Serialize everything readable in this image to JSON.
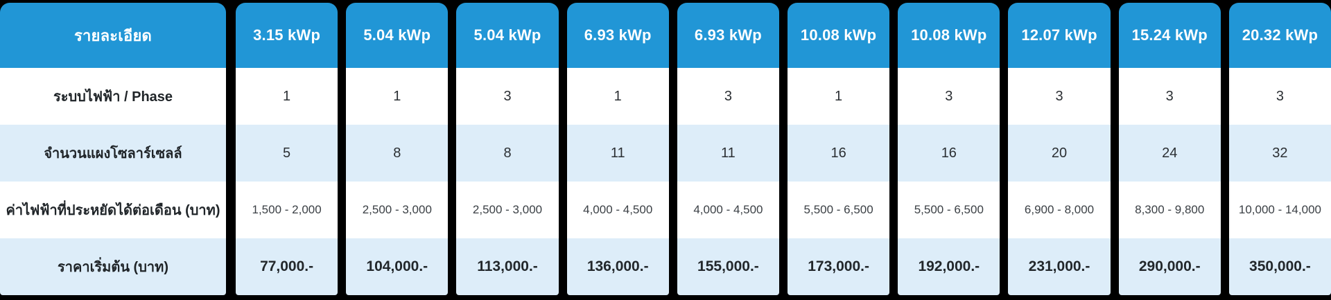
{
  "colors": {
    "header_bg": "#2196d6",
    "header_text": "#ffffff",
    "row_alt_bg": "#ddedf9",
    "row_bg": "#ffffff",
    "page_bg": "#000000",
    "body_text": "#2b2f33"
  },
  "table": {
    "header_label": "รายละเอียด",
    "columns": [
      "3.15 kWp",
      "5.04 kWp",
      "5.04 kWp",
      "6.93 kWp",
      "6.93 kWp",
      "10.08 kWp",
      "10.08 kWp",
      "12.07 kWp",
      "15.24 kWp",
      "20.32 kWp"
    ],
    "rows": [
      {
        "label": "ระบบไฟฟ้า / Phase",
        "values": [
          "1",
          "1",
          "3",
          "1",
          "3",
          "1",
          "3",
          "3",
          "3",
          "3"
        ]
      },
      {
        "label": "จำนวนแผงโซลาร์เซลล์",
        "values": [
          "5",
          "8",
          "8",
          "11",
          "11",
          "16",
          "16",
          "20",
          "24",
          "32"
        ]
      },
      {
        "label": "ค่าไฟฟ้าที่ประหยัดได้ต่อเดือน (บาท)",
        "values": [
          "1,500 - 2,000",
          "2,500 - 3,000",
          "2,500 - 3,000",
          "4,000 - 4,500",
          "4,000 - 4,500",
          "5,500 - 6,500",
          "5,500 - 6,500",
          "6,900 - 8,000",
          "8,300 - 9,800",
          "10,000 - 14,000"
        ]
      },
      {
        "label": "ราคาเริ่มต้น (บาท)",
        "values": [
          "77,000.-",
          "104,000.-",
          "113,000.-",
          "136,000.-",
          "155,000.-",
          "173,000.-",
          "192,000.-",
          "231,000.-",
          "290,000.-",
          "350,000.-"
        ]
      }
    ]
  },
  "chart_data": {
    "type": "table",
    "title": "",
    "columns": [
      "รายละเอียด",
      "3.15 kWp",
      "5.04 kWp",
      "5.04 kWp",
      "6.93 kWp",
      "6.93 kWp",
      "10.08 kWp",
      "10.08 kWp",
      "12.07 kWp",
      "15.24 kWp",
      "20.32 kWp"
    ],
    "rows": [
      [
        "ระบบไฟฟ้า / Phase",
        1,
        1,
        3,
        1,
        3,
        1,
        3,
        3,
        3,
        3
      ],
      [
        "จำนวนแผงโซลาร์เซลล์",
        5,
        8,
        8,
        11,
        11,
        16,
        16,
        20,
        24,
        32
      ],
      [
        "ค่าไฟฟ้าที่ประหยัดได้ต่อเดือน (บาท)",
        "1,500 - 2,000",
        "2,500 - 3,000",
        "2,500 - 3,000",
        "4,000 - 4,500",
        "4,000 - 4,500",
        "5,500 - 6,500",
        "5,500 - 6,500",
        "6,900 - 8,000",
        "8,300 - 9,800",
        "10,000 - 14,000"
      ],
      [
        "ราคาเริ่มต้น (บาท)",
        "77,000.-",
        "104,000.-",
        "113,000.-",
        "136,000.-",
        "155,000.-",
        "173,000.-",
        "192,000.-",
        "231,000.-",
        "290,000.-",
        "350,000.-"
      ]
    ],
    "legend_position": "none",
    "grid": false
  }
}
